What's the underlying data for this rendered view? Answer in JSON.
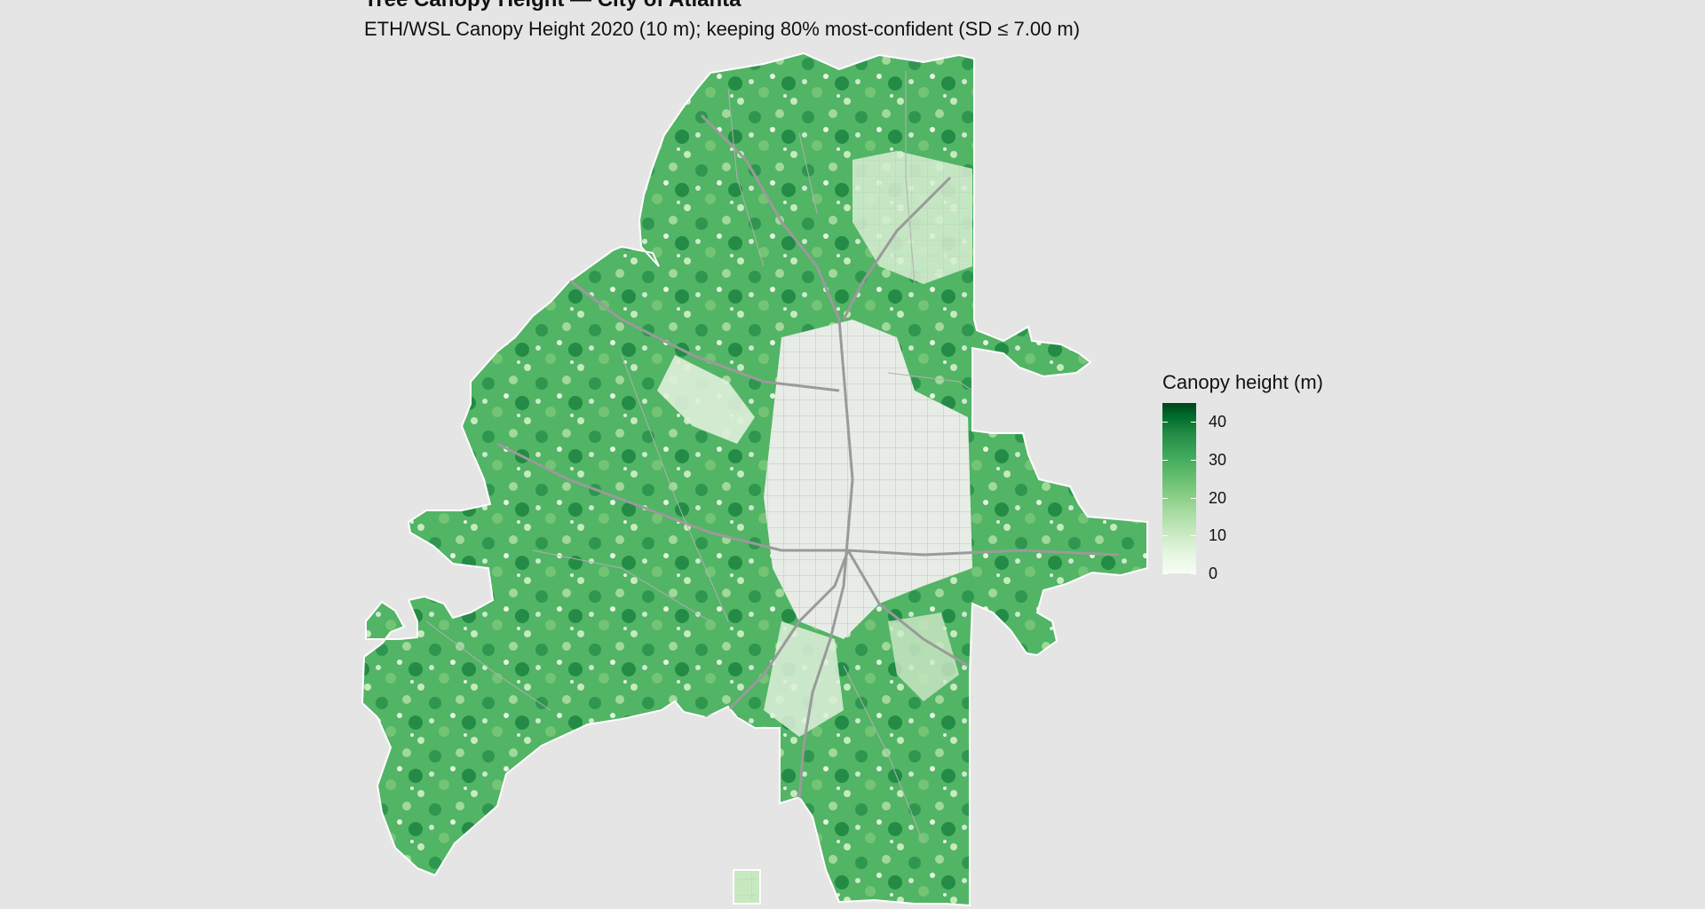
{
  "title": "Tree Canopy Height — City of Atlanta",
  "subtitle": "ETH/WSL Canopy Height 2020 (10 m); keeping 80% most-confident (SD ≤ 7.00 m)",
  "legend": {
    "title": "Canopy height (m)",
    "labels": [
      "0",
      "10",
      "20",
      "30",
      "40"
    ],
    "range": [
      0,
      45
    ],
    "palette": [
      "#f7fcf5",
      "#e5f5e0",
      "#c7e9c0",
      "#a1d99b",
      "#74c476",
      "#41ab5d",
      "#238b45",
      "#006d2c",
      "#00441b"
    ]
  },
  "colors": {
    "background": "#e5e5e5",
    "city_boundary": "#ffffff",
    "roads": "#9a9a9a",
    "canopy_mid": "#41ab5d"
  }
}
